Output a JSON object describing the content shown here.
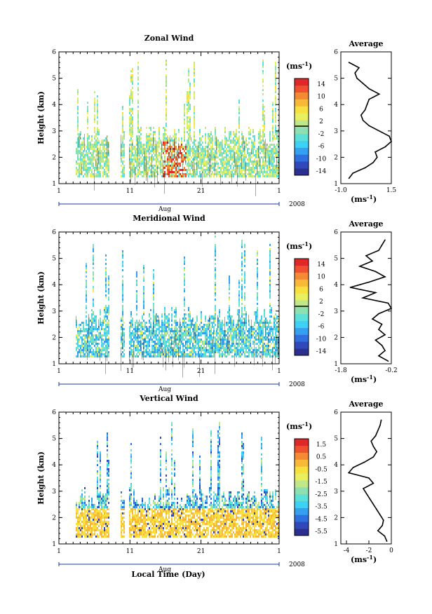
{
  "figure": {
    "x_axis_title": "Local Time (Day)",
    "colors": {
      "scale": [
        "#2b2f8f",
        "#3048b8",
        "#2f6fe0",
        "#35a0f0",
        "#3fd0f5",
        "#5de0d8",
        "#8ee0b0",
        "#c0e88a",
        "#e8f060",
        "#f8e040",
        "#f8b838",
        "#f58a35",
        "#ef5030",
        "#e02828"
      ]
    }
  },
  "chart_data": [
    {
      "id": "zonal",
      "type": "heatmap",
      "title": "Zonal Wind",
      "ylabel": "Height (km)",
      "yticks": [
        "1",
        "2",
        "3",
        "4",
        "5",
        "6"
      ],
      "ylim": [
        1,
        6
      ],
      "xlabel": "Aug",
      "xtick_labels": [
        "1",
        "11",
        "21",
        "1"
      ],
      "year": "2008",
      "colorbar": {
        "unit_base": "(ms",
        "unit_exp": "-1",
        "unit_close": ")",
        "labels": [
          "14",
          "10",
          "6",
          "2",
          "-2",
          "-6",
          "-10",
          "-14"
        ],
        "zero_line_label": "2"
      },
      "profile": {
        "title": "Average",
        "xlabel_base": "(ms",
        "xlabel_exp": "-1",
        "xlabel_close": ")",
        "xtick_labels": [
          "-1.0",
          "1.5"
        ],
        "xlim": [
          -1.0,
          1.5
        ],
        "heights": [
          1.2,
          1.4,
          1.6,
          1.8,
          2.0,
          2.2,
          2.4,
          2.6,
          2.8,
          3.0,
          3.2,
          3.4,
          3.6,
          3.8,
          4.0,
          4.2,
          4.4,
          4.6,
          4.8,
          5.0,
          5.2,
          5.4,
          5.6
        ],
        "values": [
          -0.6,
          -0.4,
          0.2,
          0.6,
          0.8,
          0.7,
          1.2,
          1.5,
          1.4,
          0.9,
          0.4,
          0.1,
          0.0,
          0.2,
          0.3,
          0.4,
          0.9,
          0.4,
          0.1,
          -0.2,
          -0.3,
          -0.1,
          -0.6
        ]
      }
    },
    {
      "id": "meridional",
      "type": "heatmap",
      "title": "Meridional Wind",
      "ylabel": "Height (km)",
      "yticks": [
        "1",
        "2",
        "3",
        "4",
        "5",
        "6"
      ],
      "ylim": [
        1,
        6
      ],
      "xlabel": "Aug",
      "xtick_labels": [
        "1",
        "11",
        "21",
        "1"
      ],
      "year": "2008",
      "colorbar": {
        "unit_base": "(ms",
        "unit_exp": "-1",
        "unit_close": ")",
        "labels": [
          "14",
          "10",
          "6",
          "2",
          "-2",
          "-6",
          "-10",
          "-14"
        ],
        "zero_line_label": "2"
      },
      "profile": {
        "title": "Average",
        "xlabel_base": "(ms",
        "xlabel_exp": "-1",
        "xlabel_close": ")",
        "xtick_labels": [
          "-1.8",
          "-0.2"
        ],
        "xlim": [
          -1.8,
          -0.2
        ],
        "heights": [
          1.1,
          1.3,
          1.5,
          1.7,
          1.9,
          2.1,
          2.3,
          2.5,
          2.7,
          2.9,
          3.1,
          3.3,
          3.5,
          3.7,
          3.9,
          4.1,
          4.3,
          4.5,
          4.7,
          4.9,
          5.1,
          5.3,
          5.5,
          5.7
        ],
        "values": [
          -0.3,
          -0.6,
          -0.4,
          -0.5,
          -0.7,
          -0.4,
          -0.6,
          -0.5,
          -0.8,
          -0.6,
          -0.2,
          -0.3,
          -1.1,
          -0.7,
          -1.5,
          -0.9,
          -0.4,
          -0.7,
          -1.2,
          -0.8,
          -1.0,
          -0.6,
          -0.5,
          -0.4
        ]
      }
    },
    {
      "id": "vertical",
      "type": "heatmap",
      "title": "Vertical Wind",
      "ylabel": "Height (km)",
      "yticks": [
        "1",
        "2",
        "3",
        "4",
        "5",
        "6"
      ],
      "ylim": [
        1,
        6
      ],
      "xlabel": "Aug",
      "xtick_labels": [
        "1",
        "11",
        "21",
        "1"
      ],
      "year": "2008",
      "colorbar": {
        "unit_base": "(ms",
        "unit_exp": "-1",
        "unit_close": ")",
        "labels": [
          "1.5",
          "0.5",
          "-0.5",
          "-1.5",
          "-2.5",
          "-3.5",
          "-4.5",
          "-5.5"
        ],
        "zero_line_label": ""
      },
      "profile": {
        "title": "Average",
        "xlabel_base": "(ms",
        "xlabel_exp": "-1",
        "xlabel_close": ")",
        "xtick_labels": [
          "-4",
          "-2",
          "0"
        ],
        "xlim": [
          -4.5,
          0
        ],
        "heights": [
          1.1,
          1.3,
          1.5,
          1.7,
          1.9,
          2.1,
          2.3,
          2.5,
          2.7,
          2.9,
          3.1,
          3.3,
          3.5,
          3.7,
          3.9,
          4.1,
          4.3,
          4.5,
          4.7,
          4.9,
          5.1,
          5.3,
          5.5,
          5.7
        ],
        "values": [
          -0.4,
          -0.6,
          -1.2,
          -0.8,
          -0.7,
          -1.0,
          -1.3,
          -1.6,
          -1.9,
          -2.2,
          -2.5,
          -1.6,
          -2.0,
          -3.8,
          -3.4,
          -2.4,
          -1.6,
          -1.3,
          -1.6,
          -1.8,
          -1.4,
          -1.2,
          -1.0,
          -0.9
        ]
      }
    }
  ]
}
